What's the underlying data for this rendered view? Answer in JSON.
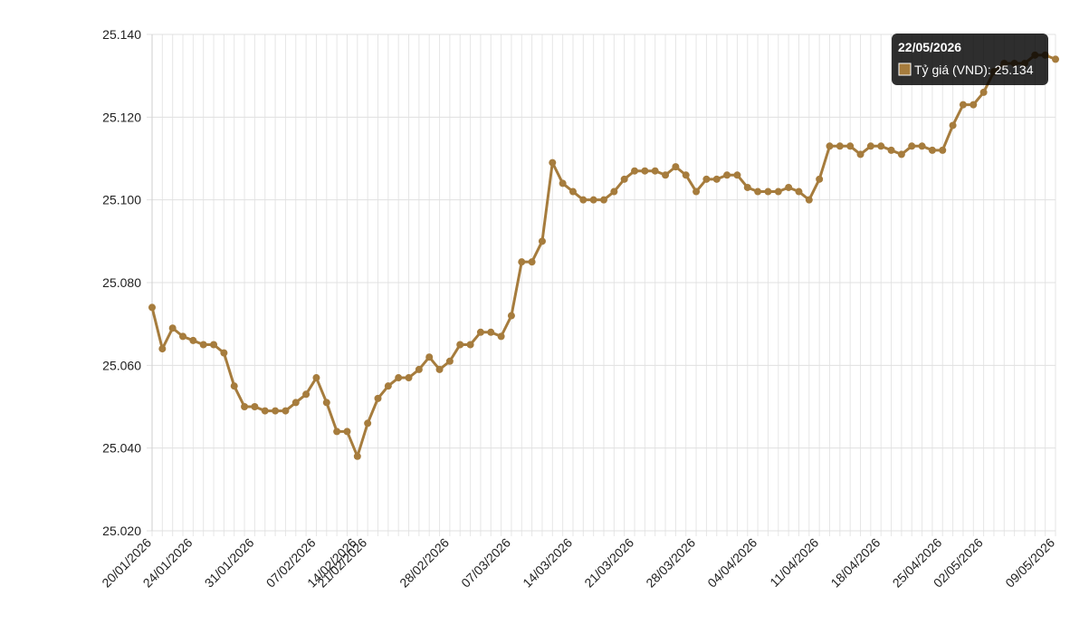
{
  "chart_data": {
    "type": "line",
    "categories": [
      "20/01/2026",
      null,
      null,
      null,
      "24/01/2026",
      null,
      null,
      null,
      null,
      null,
      "31/01/2026",
      null,
      null,
      null,
      null,
      null,
      "07/02/2026",
      null,
      null,
      null,
      "14/02/2026",
      "21/02/2026",
      null,
      null,
      null,
      null,
      null,
      null,
      null,
      "28/02/2026",
      null,
      null,
      null,
      null,
      null,
      "07/03/2026",
      null,
      null,
      null,
      null,
      null,
      "14/03/2026",
      null,
      null,
      null,
      null,
      null,
      "21/03/2026",
      null,
      null,
      null,
      null,
      null,
      "28/03/2026",
      null,
      null,
      null,
      null,
      null,
      "04/04/2026",
      null,
      null,
      null,
      null,
      null,
      "11/04/2026",
      null,
      null,
      null,
      null,
      null,
      "18/04/2026",
      null,
      null,
      null,
      null,
      null,
      "25/04/2026",
      null,
      null,
      null,
      "02/05/2026",
      null,
      null,
      null,
      null,
      null,
      null,
      "09/05/2026"
    ],
    "series": [
      {
        "name": "Tỷ giá (VND)",
        "color": "#a67c3d",
        "values": [
          25074,
          25064,
          25069,
          25067,
          25066,
          25065,
          25065,
          25063,
          25055,
          25050,
          25050,
          25049,
          25049,
          25049,
          25051,
          25053,
          25057,
          25051,
          25044,
          25044,
          25038,
          25046,
          25052,
          25055,
          25057,
          25057,
          25059,
          25062,
          25059,
          25061,
          25065,
          25065,
          25068,
          25068,
          25067,
          25072,
          25085,
          25085,
          25090,
          25109,
          25104,
          25102,
          25100,
          25100,
          25100,
          25102,
          25105,
          25107,
          25107,
          25107,
          25106,
          25108,
          25106,
          25102,
          25105,
          25105,
          25106,
          25106,
          25103,
          25102,
          25102,
          25102,
          25103,
          25102,
          25100,
          25105,
          25113,
          25113,
          25113,
          25111,
          25113,
          25113,
          25112,
          25111,
          25113,
          25113,
          25112,
          25112,
          25118,
          25123,
          25123,
          25126,
          25131,
          25133,
          25133,
          25133,
          25135,
          25135,
          25134
        ]
      }
    ],
    "ylim": [
      25020,
      25140
    ],
    "yticks": [
      {
        "value": 25020,
        "label": "25.020"
      },
      {
        "value": 25040,
        "label": "25.040"
      },
      {
        "value": 25060,
        "label": "25.060"
      },
      {
        "value": 25080,
        "label": "25.080"
      },
      {
        "value": 25100,
        "label": "25.100"
      },
      {
        "value": 25120,
        "label": "25.120"
      },
      {
        "value": 25140,
        "label": "25.140"
      }
    ],
    "grid": true,
    "tooltip": {
      "title": "22/05/2026",
      "text": "Tỷ giá (VND): 25.134"
    }
  }
}
